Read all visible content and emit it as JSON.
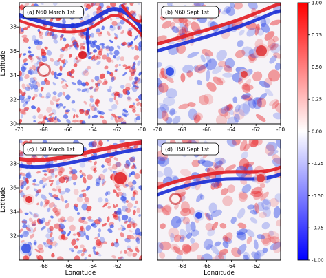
{
  "chart_data": {
    "type": "heatmap",
    "xlabel": "Longitude",
    "ylabel": "Latitude",
    "panels": [
      {
        "label": "(a) N60 March 1st",
        "xlim": [
          -70,
          -60
        ],
        "ylim": [
          30,
          40
        ],
        "xticks": [
          "-70",
          "-68",
          "-66",
          "-64",
          "-62",
          "-60"
        ],
        "yticks": [
          "30",
          "32",
          "34",
          "36",
          "38"
        ],
        "show_xlabel": false,
        "show_ylabel": true
      },
      {
        "label": "(b) N60 Sept 1st",
        "xlim": [
          -70,
          -60
        ],
        "ylim": [
          30,
          40
        ],
        "xticks": [
          "-70",
          "-68",
          "-66",
          "-64",
          "-62",
          "-60"
        ],
        "yticks": [],
        "show_xlabel": false,
        "show_ylabel": false
      },
      {
        "label": "(c) H50 March 1st",
        "xlim": [
          -70,
          -60
        ],
        "ylim": [
          30,
          40
        ],
        "xticks": [
          "-68",
          "-66",
          "-64",
          "-62"
        ],
        "yticks": [
          "32",
          "34",
          "36",
          "38"
        ],
        "show_xlabel": true,
        "show_ylabel": true
      },
      {
        "label": "(d) H50 Sept 1st",
        "xlim": [
          -70,
          -60
        ],
        "ylim": [
          30,
          40
        ],
        "xticks": [
          "-68",
          "-66",
          "-64",
          "-62"
        ],
        "yticks": [],
        "show_xlabel": true,
        "show_ylabel": false
      }
    ],
    "colorbar": {
      "range": [
        -1.0,
        1.0
      ],
      "ticks": [
        "1.00",
        "0.75",
        "0.50",
        "0.25",
        "0.00",
        "-0.25",
        "-0.50",
        "-0.75",
        "-1.00"
      ],
      "colors": [
        "#0000ff",
        "#ffffff",
        "#ff0000"
      ]
    }
  }
}
